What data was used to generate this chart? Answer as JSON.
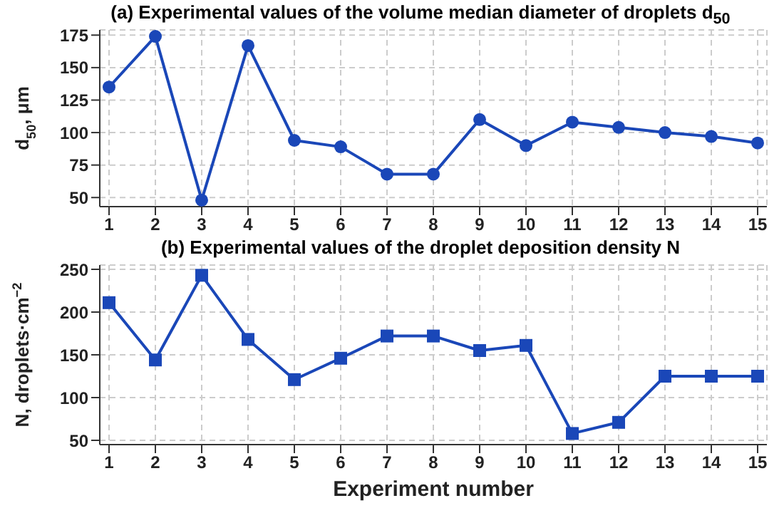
{
  "chart_data": [
    {
      "type": "line",
      "title": "(a) Experimental values of the volume median diameter of droplets d$_{50}$",
      "ylabel": "d$_{50}$, μm",
      "x": [
        1,
        2,
        3,
        4,
        5,
        6,
        7,
        8,
        9,
        10,
        11,
        12,
        13,
        14,
        15
      ],
      "xlim": [
        0.8,
        15.2
      ],
      "xticks": [
        1,
        2,
        3,
        4,
        5,
        6,
        7,
        8,
        9,
        10,
        11,
        12,
        13,
        14,
        15
      ],
      "ylim": [
        43,
        179
      ],
      "yticks": [
        50,
        75,
        100,
        125,
        150,
        175
      ],
      "grid": true,
      "marker": "circle",
      "line_style": "solid",
      "series": [
        {
          "color": "#1a47b8",
          "values": [
            135,
            174,
            48,
            167,
            94,
            89,
            68,
            68,
            110,
            90,
            108,
            104,
            100,
            97,
            92
          ]
        }
      ]
    },
    {
      "type": "line",
      "title": "(b) Experimental values of the droplet deposition density N",
      "xlabel": "Experiment number",
      "ylabel": "N, droplets·cm$^{−2}$",
      "x": [
        1,
        2,
        3,
        4,
        5,
        6,
        7,
        8,
        9,
        10,
        11,
        12,
        13,
        14,
        15
      ],
      "xlim": [
        0.8,
        15.2
      ],
      "xticks": [
        1,
        2,
        3,
        4,
        5,
        6,
        7,
        8,
        9,
        10,
        11,
        12,
        13,
        14,
        15
      ],
      "ylim": [
        45,
        255
      ],
      "yticks": [
        50,
        100,
        150,
        200,
        250
      ],
      "grid": true,
      "marker": "square",
      "line_style": "solid",
      "series": [
        {
          "color": "#1a47b8",
          "values": [
            211,
            144,
            243,
            168,
            121,
            146,
            172,
            172,
            155,
            161,
            58,
            71,
            125,
            125,
            125
          ]
        }
      ]
    }
  ]
}
